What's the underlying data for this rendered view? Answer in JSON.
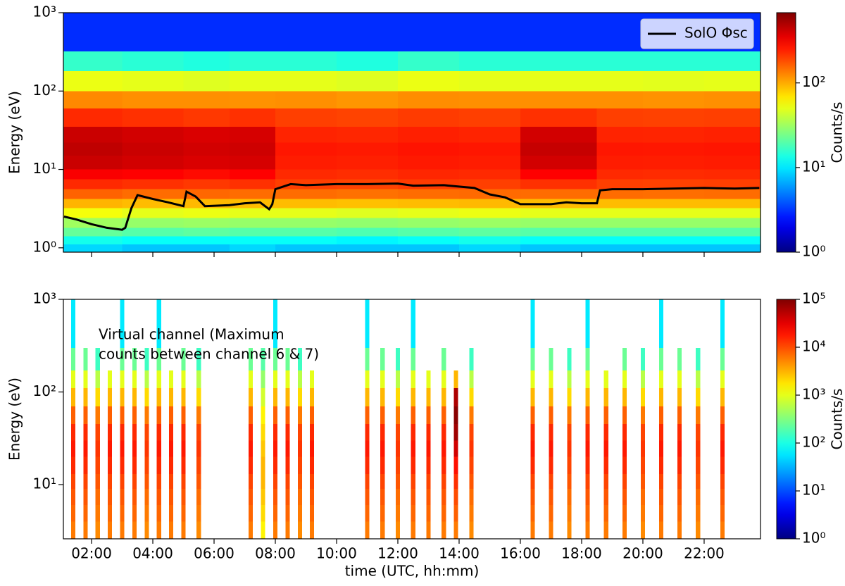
{
  "chart_data": [
    {
      "type": "heatmap",
      "ylabel": "Energy (eV)",
      "colorbar_label": "Counts/s",
      "log_y": true,
      "xlim": [
        1.08,
        23.84
      ],
      "ylim": [
        0.88,
        1000
      ],
      "clim": [
        1,
        676
      ],
      "xticks": [
        2,
        4,
        6,
        8,
        10,
        12,
        14,
        16,
        18,
        20,
        22
      ],
      "yticks": [
        {
          "value": 1,
          "label": "10⁰"
        },
        {
          "value": 10,
          "label": "10¹"
        },
        {
          "value": 100,
          "label": "10²"
        },
        {
          "value": 1000,
          "label": "10³"
        }
      ],
      "cticks": [
        {
          "value": 1,
          "label": "10⁰"
        },
        {
          "value": 10,
          "label": "10¹"
        },
        {
          "value": 100,
          "label": "10²"
        }
      ],
      "time_edges": [
        1.08,
        3,
        5,
        6.5,
        8,
        10,
        12,
        14,
        16,
        18.5,
        20,
        22,
        23.84
      ],
      "energy_edges": [
        0.88,
        1.1,
        1.4,
        1.8,
        2.4,
        3.2,
        4.2,
        5.6,
        7.5,
        10,
        15,
        22,
        35,
        60,
        100,
        180,
        320,
        1000
      ],
      "values": [
        [
          9,
          13,
          22,
          32,
          55,
          95,
          160,
          230,
          310,
          420,
          450,
          420,
          230,
          125,
          52,
          16,
          3
        ],
        [
          8,
          12,
          20,
          30,
          50,
          90,
          150,
          220,
          300,
          400,
          420,
          400,
          220,
          120,
          50,
          15,
          3
        ],
        [
          8,
          12,
          21,
          31,
          52,
          92,
          155,
          210,
          280,
          380,
          400,
          380,
          210,
          120,
          48,
          14,
          3
        ],
        [
          9,
          12,
          20,
          30,
          50,
          90,
          150,
          220,
          300,
          390,
          410,
          390,
          220,
          118,
          50,
          15,
          3
        ],
        [
          8,
          12,
          20,
          30,
          50,
          90,
          150,
          200,
          230,
          250,
          260,
          240,
          200,
          120,
          50,
          15,
          3
        ],
        [
          8,
          11,
          19,
          29,
          48,
          88,
          145,
          195,
          225,
          245,
          255,
          235,
          195,
          115,
          48,
          14,
          3
        ],
        [
          8,
          12,
          20,
          30,
          50,
          90,
          150,
          205,
          235,
          255,
          265,
          245,
          205,
          122,
          52,
          16,
          3
        ],
        [
          9,
          13,
          21,
          31,
          52,
          92,
          152,
          200,
          230,
          250,
          260,
          240,
          200,
          120,
          50,
          15,
          3
        ],
        [
          8,
          12,
          20,
          30,
          50,
          90,
          150,
          220,
          300,
          400,
          430,
          400,
          220,
          120,
          50,
          15,
          3
        ],
        [
          8,
          12,
          20,
          30,
          50,
          90,
          150,
          200,
          230,
          250,
          260,
          240,
          200,
          120,
          50,
          15,
          3
        ],
        [
          8,
          12,
          20,
          30,
          50,
          90,
          148,
          198,
          228,
          248,
          258,
          238,
          198,
          118,
          49,
          15,
          3
        ],
        [
          8,
          12,
          20,
          30,
          50,
          90,
          150,
          200,
          230,
          252,
          262,
          242,
          200,
          120,
          50,
          15,
          3
        ]
      ],
      "series": [
        {
          "name": "SolO Φsc",
          "color": "#000000",
          "x": [
            1.1,
            1.5,
            2.0,
            2.5,
            3.0,
            3.1,
            3.3,
            3.5,
            4.0,
            4.5,
            5.0,
            5.1,
            5.4,
            5.7,
            6.5,
            7.0,
            7.5,
            7.8,
            7.9,
            8.0,
            8.5,
            9.0,
            10,
            11,
            12,
            12.5,
            13.5,
            14.5,
            15,
            15.5,
            16,
            17,
            17.5,
            18,
            18.5,
            18.6,
            19,
            20,
            21,
            22,
            23,
            23.8
          ],
          "values": [
            2.5,
            2.3,
            2.0,
            1.8,
            1.7,
            1.8,
            3.2,
            4.7,
            4.2,
            3.8,
            3.4,
            5.2,
            4.5,
            3.4,
            3.5,
            3.7,
            3.8,
            3.1,
            3.6,
            5.6,
            6.5,
            6.3,
            6.5,
            6.5,
            6.6,
            6.2,
            6.3,
            5.8,
            4.8,
            4.4,
            3.6,
            3.6,
            3.8,
            3.7,
            3.7,
            5.4,
            5.6,
            5.6,
            5.7,
            5.8,
            5.7,
            5.8
          ]
        }
      ],
      "legend": "upper right"
    },
    {
      "type": "columns",
      "xlabel": "time (UTC, hh:mm)",
      "ylabel": "Energy (eV)",
      "colorbar_label": "Counts/s",
      "annotation": [
        "Virtual channel (Maximum",
        "counts between channel 6 & 7)"
      ],
      "log_y": true,
      "xlim": [
        1.08,
        23.84
      ],
      "ylim": [
        2.6,
        1000
      ],
      "clim": [
        1,
        100000
      ],
      "xticks": [
        {
          "value": 2,
          "label": "02:00"
        },
        {
          "value": 4,
          "label": "04:00"
        },
        {
          "value": 6,
          "label": "06:00"
        },
        {
          "value": 8,
          "label": "08:00"
        },
        {
          "value": 10,
          "label": "10:00"
        },
        {
          "value": 12,
          "label": "12:00"
        },
        {
          "value": 14,
          "label": "14:00"
        },
        {
          "value": 16,
          "label": "16:00"
        },
        {
          "value": 18,
          "label": "18:00"
        },
        {
          "value": 20,
          "label": "20:00"
        },
        {
          "value": 22,
          "label": "22:00"
        }
      ],
      "yticks": [
        {
          "value": 10,
          "label": "10¹"
        },
        {
          "value": 100,
          "label": "10²"
        },
        {
          "value": 1000,
          "label": "10³"
        }
      ],
      "cticks": [
        {
          "value": 1,
          "label": "10⁰"
        },
        {
          "value": 10,
          "label": "10¹"
        },
        {
          "value": 100,
          "label": "10²"
        },
        {
          "value": 1000,
          "label": "10³"
        },
        {
          "value": 10000,
          "label": "10⁴"
        },
        {
          "value": 100000,
          "label": "10⁵"
        }
      ],
      "energy_edges": [
        2.6,
        4,
        6,
        9,
        13,
        20,
        30,
        45,
        70,
        110,
        170,
        300,
        1000
      ],
      "time_bins": [
        [
          1.33,
          1.47
        ],
        [
          1.73,
          1.87
        ],
        [
          2.13,
          2.27
        ],
        [
          2.53,
          2.67
        ],
        [
          2.93,
          3.07
        ],
        [
          3.33,
          3.47
        ],
        [
          3.73,
          3.87
        ],
        [
          4.13,
          4.27
        ],
        [
          4.53,
          4.67
        ],
        [
          4.93,
          5.07
        ],
        [
          5.43,
          5.57
        ],
        [
          7.13,
          7.27
        ],
        [
          7.53,
          7.67
        ],
        [
          7.93,
          8.07
        ],
        [
          8.33,
          8.47
        ],
        [
          8.73,
          8.87
        ],
        [
          9.13,
          9.27
        ],
        [
          10.93,
          11.07
        ],
        [
          11.43,
          11.57
        ],
        [
          11.93,
          12.07
        ],
        [
          12.43,
          12.57
        ],
        [
          12.93,
          13.07
        ],
        [
          13.43,
          13.57
        ],
        [
          13.83,
          13.97
        ],
        [
          14.33,
          14.47
        ],
        [
          16.33,
          16.47
        ],
        [
          16.93,
          17.07
        ],
        [
          17.53,
          17.67
        ],
        [
          18.13,
          18.27
        ],
        [
          18.73,
          18.87
        ],
        [
          19.33,
          19.47
        ],
        [
          19.93,
          20.07
        ],
        [
          20.53,
          20.67
        ],
        [
          21.13,
          21.27
        ],
        [
          21.73,
          21.87
        ],
        [
          22.53,
          22.67
        ]
      ],
      "values": [
        [
          6000,
          7500,
          9000,
          11000,
          15000,
          18000,
          15000,
          8000,
          3000,
          1000,
          250,
          60
        ],
        [
          6000,
          7500,
          9000,
          11000,
          15000,
          18000,
          15000,
          8000,
          3000,
          1000,
          250,
          null
        ],
        [
          5000,
          6000,
          7000,
          9000,
          11000,
          13000,
          11000,
          6000,
          2000,
          600,
          150,
          null
        ],
        [
          6000,
          7500,
          9000,
          11000,
          15000,
          18000,
          15000,
          8000,
          3000,
          1000,
          null,
          null
        ],
        [
          6000,
          7500,
          9000,
          11000,
          15000,
          18000,
          15000,
          8000,
          3000,
          1000,
          250,
          60
        ],
        [
          6000,
          7500,
          9000,
          11000,
          15000,
          18000,
          15000,
          8000,
          3000,
          1000,
          250,
          null
        ],
        [
          5000,
          6000,
          7000,
          9000,
          11000,
          13000,
          11000,
          6000,
          2000,
          600,
          150,
          null
        ],
        [
          6000,
          7500,
          9000,
          11000,
          15000,
          18000,
          15000,
          8000,
          3000,
          1000,
          250,
          60
        ],
        [
          6000,
          7500,
          9000,
          11000,
          15000,
          18000,
          15000,
          8000,
          3000,
          1000,
          null,
          null
        ],
        [
          6000,
          7500,
          9000,
          11000,
          15000,
          18000,
          15000,
          8000,
          3000,
          1000,
          250,
          null
        ],
        [
          5000,
          6000,
          7000,
          9000,
          11000,
          13000,
          11000,
          6000,
          2000,
          600,
          150,
          null
        ],
        [
          6000,
          7500,
          9000,
          11000,
          15000,
          18000,
          15000,
          8000,
          3000,
          1000,
          250,
          null
        ],
        [
          1500,
          2000,
          2500,
          3000,
          3000,
          2500,
          2000,
          1500,
          800,
          400,
          200,
          null
        ],
        [
          6000,
          7500,
          9000,
          11000,
          15000,
          18000,
          15000,
          8000,
          3000,
          1000,
          250,
          60
        ],
        [
          6000,
          7500,
          9000,
          11000,
          15000,
          18000,
          15000,
          8000,
          3000,
          1000,
          250,
          null
        ],
        [
          5000,
          6000,
          7000,
          9000,
          11000,
          13000,
          11000,
          6000,
          2000,
          600,
          150,
          null
        ],
        [
          6000,
          7500,
          9000,
          11000,
          15000,
          18000,
          15000,
          8000,
          3000,
          1000,
          null,
          null
        ],
        [
          6000,
          7500,
          9000,
          11000,
          15000,
          18000,
          15000,
          8000,
          3000,
          1000,
          250,
          60
        ],
        [
          6000,
          7500,
          9000,
          11000,
          15000,
          18000,
          15000,
          8000,
          3000,
          1000,
          250,
          null
        ],
        [
          5000,
          6000,
          7000,
          9000,
          11000,
          13000,
          11000,
          6000,
          2000,
          600,
          150,
          null
        ],
        [
          6000,
          7500,
          9000,
          11000,
          15000,
          18000,
          15000,
          8000,
          3000,
          1000,
          250,
          60
        ],
        [
          6000,
          7500,
          9000,
          11000,
          15000,
          18000,
          15000,
          8000,
          3000,
          1000,
          null,
          null
        ],
        [
          6000,
          7500,
          9000,
          11000,
          15000,
          18000,
          15000,
          8000,
          3000,
          1000,
          250,
          null
        ],
        [
          6000,
          8000,
          10000,
          14000,
          20000,
          40000,
          70000,
          90000,
          60000,
          3000,
          null,
          null
        ],
        [
          5000,
          6000,
          7000,
          9000,
          11000,
          13000,
          11000,
          6000,
          2000,
          600,
          150,
          null
        ],
        [
          6000,
          7500,
          9000,
          11000,
          15000,
          18000,
          15000,
          8000,
          3000,
          1000,
          250,
          60
        ],
        [
          6000,
          7500,
          9000,
          11000,
          15000,
          18000,
          15000,
          8000,
          3000,
          1000,
          250,
          null
        ],
        [
          5000,
          6000,
          7000,
          9000,
          11000,
          13000,
          11000,
          6000,
          2000,
          600,
          150,
          null
        ],
        [
          6000,
          7500,
          9000,
          11000,
          15000,
          18000,
          15000,
          8000,
          3000,
          1000,
          250,
          60
        ],
        [
          6000,
          7500,
          9000,
          11000,
          15000,
          18000,
          15000,
          8000,
          3000,
          1000,
          null,
          null
        ],
        [
          6000,
          7500,
          9000,
          11000,
          15000,
          18000,
          15000,
          8000,
          3000,
          1000,
          250,
          null
        ],
        [
          5000,
          6000,
          7000,
          9000,
          11000,
          13000,
          11000,
          6000,
          2000,
          600,
          150,
          null
        ],
        [
          6000,
          7500,
          9000,
          11000,
          15000,
          18000,
          15000,
          8000,
          3000,
          1000,
          250,
          60
        ],
        [
          6000,
          7500,
          9000,
          11000,
          15000,
          18000,
          15000,
          8000,
          3000,
          1000,
          250,
          null
        ],
        [
          5000,
          6000,
          7000,
          9000,
          11000,
          13000,
          11000,
          6000,
          2000,
          600,
          150,
          null
        ],
        [
          6000,
          7500,
          9000,
          11000,
          15000,
          18000,
          15000,
          8000,
          3000,
          1000,
          250,
          60
        ]
      ]
    }
  ]
}
